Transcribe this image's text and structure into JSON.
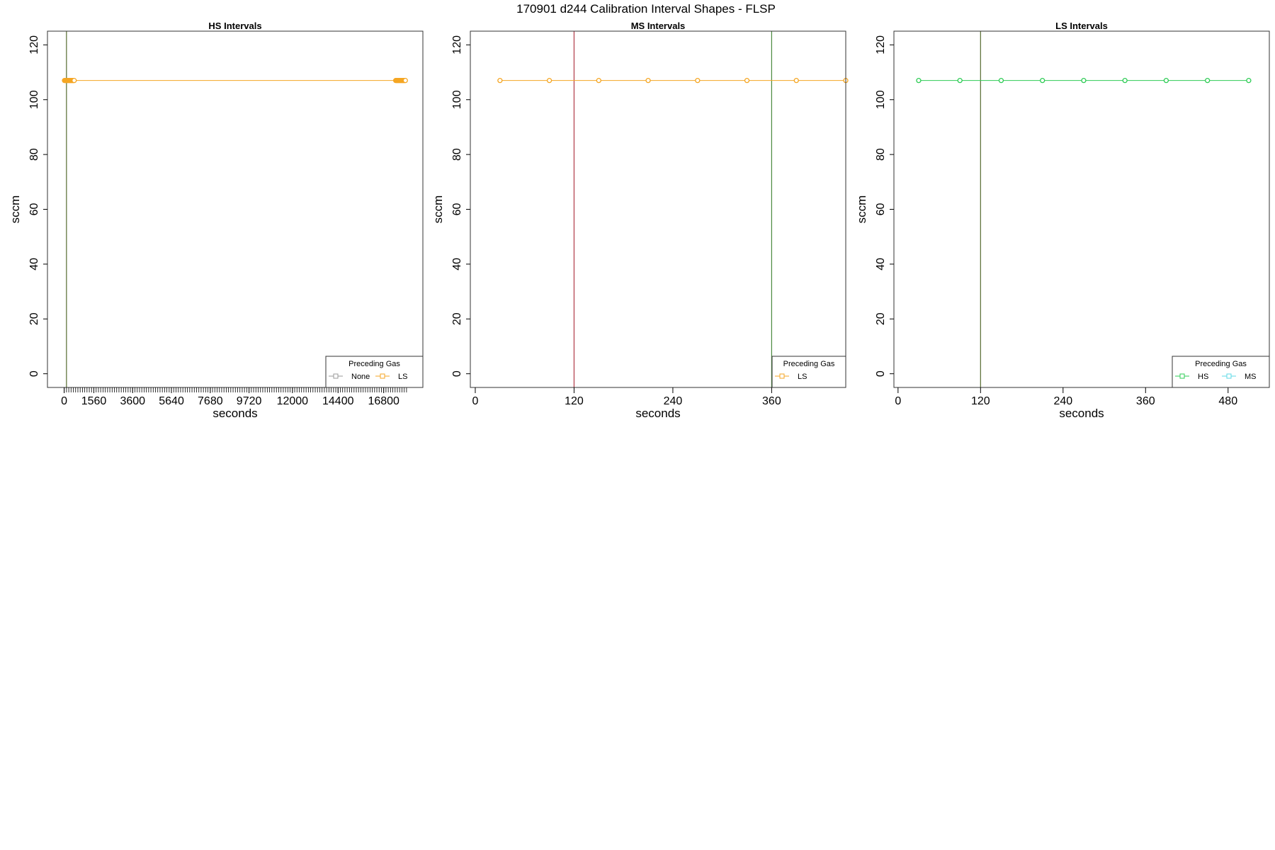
{
  "figure_title": "170901   d244   Calibration Interval Shapes - FLSP",
  "chart_data": [
    {
      "type": "line",
      "title": "HS Intervals",
      "xlabel": "seconds",
      "ylabel": "sccm",
      "xlim": [
        -880,
        18860
      ],
      "ylim": [
        -5,
        125
      ],
      "yticks": [
        0,
        20,
        40,
        60,
        80,
        100,
        120
      ],
      "xticks_major": [
        0,
        1560,
        3600,
        5640,
        7680,
        9720,
        12000,
        14400,
        16800
      ],
      "xticks_minor_step": 120,
      "xticks_minor_range": [
        0,
        18000
      ],
      "vlines": [
        {
          "x": 120,
          "color": "#556b2f"
        }
      ],
      "series": [
        {
          "name": "None",
          "color": "#999999",
          "x": [],
          "y": []
        },
        {
          "name": "LS",
          "color": "#f5a623",
          "x": [
            15,
            45,
            75,
            105,
            135,
            165,
            195,
            225,
            255,
            285,
            315,
            345,
            375,
            405,
            435,
            465,
            495,
            525,
            17430,
            17460,
            17490,
            17520,
            17550,
            17580,
            17610,
            17640,
            17670,
            17700,
            17730,
            17760,
            17790,
            17820,
            17850,
            17880,
            17910,
            17940
          ],
          "y": [
            107,
            107,
            107,
            107,
            107,
            107,
            107,
            107,
            107,
            107,
            107,
            107,
            107,
            107,
            107,
            107,
            107,
            107,
            107,
            107,
            107,
            107,
            107,
            107,
            107,
            107,
            107,
            107,
            107,
            107,
            107,
            107,
            107,
            107,
            107,
            107
          ]
        }
      ],
      "legend": {
        "title": "Preceding Gas",
        "position": "bottom-right"
      }
    },
    {
      "type": "line",
      "title": "MS Intervals",
      "xlabel": "seconds",
      "ylabel": "sccm",
      "xlim": [
        -6,
        450
      ],
      "ylim": [
        -5,
        125
      ],
      "yticks": [
        0,
        20,
        40,
        60,
        80,
        100,
        120
      ],
      "xticks_major": [
        0,
        120,
        240,
        360
      ],
      "vlines": [
        {
          "x": 120,
          "color": "#b03a48"
        },
        {
          "x": 360,
          "color": "#4a8a3e"
        }
      ],
      "series": [
        {
          "name": "LS",
          "color": "#f5a623",
          "x": [
            30,
            90,
            150,
            210,
            270,
            330,
            390,
            450
          ],
          "y": [
            107,
            107,
            107,
            107,
            107,
            107,
            107,
            107
          ]
        }
      ],
      "legend": {
        "title": "Preceding Gas",
        "position": "bottom-right"
      }
    },
    {
      "type": "line",
      "title": "LS Intervals",
      "xlabel": "seconds",
      "ylabel": "sccm",
      "xlim": [
        -6,
        540
      ],
      "ylim": [
        -5,
        125
      ],
      "yticks": [
        0,
        20,
        40,
        60,
        80,
        100,
        120
      ],
      "xticks_major": [
        0,
        120,
        240,
        360,
        480
      ],
      "vlines": [
        {
          "x": 120,
          "color": "#556b2f"
        }
      ],
      "series": [
        {
          "name": "HS",
          "color": "#2ecc55",
          "x": [
            30,
            90,
            150,
            210,
            270,
            330,
            390,
            450,
            510
          ],
          "y": [
            107,
            107,
            107,
            107,
            107,
            107,
            107,
            107,
            107
          ]
        },
        {
          "name": "MS",
          "color": "#5bd8e6",
          "x": [],
          "y": []
        }
      ],
      "legend": {
        "title": "Preceding Gas",
        "position": "bottom-right"
      }
    }
  ]
}
